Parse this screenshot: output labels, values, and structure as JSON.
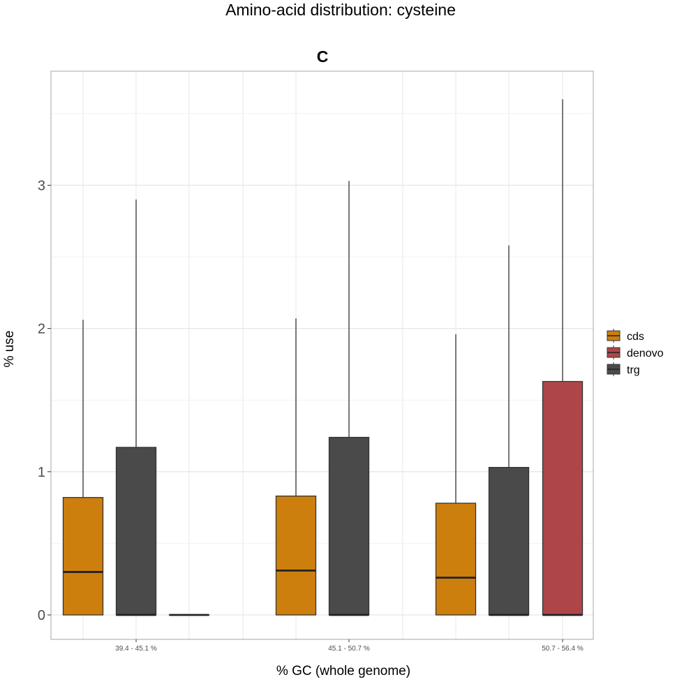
{
  "title": "Amino-acid distribution: cysteine",
  "colors": {
    "cds": "#CD7F0E",
    "denovo": "#AE4649",
    "trg": "#4A4A4A"
  },
  "chart_data": {
    "type": "boxplot",
    "title": "C",
    "xlabel": "% GC (whole genome)",
    "ylabel": "% use",
    "ylim": [
      -0.17,
      3.82
    ],
    "yticks": [
      "0",
      "1",
      "2",
      "3"
    ],
    "grid": true,
    "legend_position": "right",
    "categories": [
      "39.4 - 45.1 %",
      "45.1 - 50.7 %",
      "50.7 - 56.4 %"
    ],
    "series": [
      {
        "name": "cds",
        "color": "#CD7F0E",
        "boxes": [
          {
            "category": "39.4 - 45.1 %",
            "min": 0,
            "q1": 0,
            "median": 0.3,
            "q3": 0.82,
            "max": 2.06
          },
          {
            "category": "45.1 - 50.7 %",
            "min": 0,
            "q1": 0,
            "median": 0.31,
            "q3": 0.83,
            "max": 2.07
          },
          {
            "category": "50.7 - 56.4 %",
            "min": 0,
            "q1": 0,
            "median": 0.26,
            "q3": 0.78,
            "max": 1.96
          }
        ]
      },
      {
        "name": "trg",
        "color": "#4A4A4A",
        "boxes": [
          {
            "category": "39.4 - 45.1 %",
            "min": 0,
            "q1": 0,
            "median": 0,
            "q3": 1.17,
            "max": 2.9
          },
          {
            "category": "45.1 - 50.7 %",
            "min": 0,
            "q1": 0,
            "median": 0,
            "q3": 1.24,
            "max": 3.03
          },
          {
            "category": "50.7 - 56.4 %",
            "min": 0,
            "q1": 0,
            "median": 0,
            "q3": 1.03,
            "max": 2.58
          }
        ]
      },
      {
        "name": "denovo",
        "color": "#AE4649",
        "boxes": [
          {
            "category": "39.4 - 45.1 %",
            "min": 0,
            "q1": 0,
            "median": 0,
            "q3": 0,
            "max": 0
          },
          {
            "category": "50.7 - 56.4 %",
            "min": 0,
            "q1": 0,
            "median": 0,
            "q3": 1.63,
            "max": 3.6
          }
        ]
      }
    ],
    "legend": [
      "cds",
      "denovo",
      "trg"
    ]
  }
}
